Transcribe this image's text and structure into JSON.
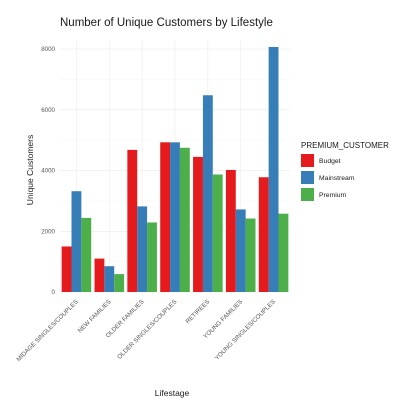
{
  "chart_data": {
    "type": "bar",
    "title": "Number of Unique Customers by Lifestyle",
    "xlabel": "Lifestage",
    "ylabel": "Unique Customers",
    "categories": [
      "MIDAGE SINGLES/COUPLES",
      "NEW FAMILIES",
      "OLDER FAMILIES",
      "OLDER SINGLES/COUPLES",
      "RETIREES",
      "YOUNG FAMILIES",
      "YOUNG SINGLES/COUPLES"
    ],
    "series": [
      {
        "name": "Budget",
        "color": "#e41a1c",
        "values": [
          1500,
          1100,
          4680,
          4930,
          4450,
          4020,
          3780
        ]
      },
      {
        "name": "Mainstream",
        "color": "#377eb8",
        "values": [
          3320,
          850,
          2820,
          4930,
          6480,
          2720,
          8070
        ]
      },
      {
        "name": "Premium",
        "color": "#4daf4a",
        "values": [
          2440,
          590,
          2290,
          4750,
          3870,
          2420,
          2580
        ]
      }
    ],
    "yticks": [
      0,
      2000,
      4000,
      6000,
      8000
    ],
    "ylim": [
      0,
      8300
    ],
    "legend": {
      "title": "PREMIUM_CUSTOMER",
      "position": "right"
    },
    "grid": true
  }
}
